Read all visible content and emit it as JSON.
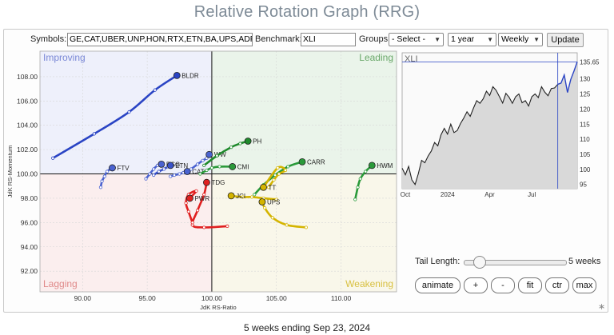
{
  "title": "Relative Rotation Graph (RRG)",
  "controls": {
    "symbols_label": "Symbols:",
    "symbols_value": "GE,CAT,UBER,UNP,HON,RTX,ETN,BA,UPS,ADP,L",
    "benchmark_label": "Benchmark:",
    "benchmark_value": "XLI",
    "groups_label": "Groups:",
    "groups_value": "- Select -",
    "period_value": "1 year",
    "interval_value": "Weekly",
    "update_label": "Update"
  },
  "chart_data": [
    {
      "type": "scatter",
      "subtype": "relative-rotation-graph",
      "xlabel": "JdK RS-Ratio",
      "ylabel": "JdK RS-Momentum",
      "xlim": [
        86.7,
        114.3
      ],
      "ylim": [
        90.3,
        110.1
      ],
      "x_ticks": [
        "90.00",
        "95.00",
        "100.00",
        "105.00",
        "110.00"
      ],
      "y_ticks": [
        "92.00",
        "94.00",
        "96.00",
        "98.00",
        "100.00",
        "102.00",
        "104.00",
        "106.00",
        "108.00"
      ],
      "quadrants": {
        "top_left": "Improving",
        "top_right": "Leading",
        "bottom_left": "Lagging",
        "bottom_right": "Weakening"
      },
      "quadrant_colors": {
        "improving": "#eef0fb",
        "leading": "#eaf4ea",
        "lagging": "#fbeeee",
        "weakening": "#f9f7ea"
      },
      "series": [
        {
          "name": "BLDR",
          "color": "#2a44c4",
          "points": [
            [
              87.7,
              101.3
            ],
            [
              90.9,
              103.3
            ],
            [
              93.6,
              105.1
            ],
            [
              95.6,
              106.9
            ],
            [
              97.3,
              108.1
            ]
          ]
        },
        {
          "name": "FTV",
          "color": "#4a62d0",
          "points": [
            [
              91.4,
              98.9
            ],
            [
              91.5,
              99.4
            ],
            [
              91.7,
              99.8
            ],
            [
              91.9,
              100.2
            ],
            [
              92.3,
              100.5
            ]
          ]
        },
        {
          "name": "RSG",
          "color": "#4a62d0",
          "points": [
            [
              94.9,
              99.6
            ],
            [
              95.2,
              100.0
            ],
            [
              95.5,
              100.4
            ],
            [
              95.8,
              100.7
            ],
            [
              96.1,
              100.8
            ]
          ]
        },
        {
          "name": "ETN",
          "color": "#3a52c8",
          "points": [
            [
              95.5,
              99.9
            ],
            [
              95.9,
              100.2
            ],
            [
              96.3,
              100.4
            ],
            [
              96.6,
              100.6
            ],
            [
              96.8,
              100.7
            ]
          ]
        },
        {
          "name": "CAT",
          "color": "#4a62d0",
          "points": [
            [
              96.8,
              99.8
            ],
            [
              97.1,
              99.9
            ],
            [
              97.5,
              100.0
            ],
            [
              97.8,
              100.1
            ],
            [
              98.1,
              100.2
            ]
          ]
        },
        {
          "name": "WW",
          "color": "#4a62d0",
          "points": [
            [
              98.4,
              100.4
            ],
            [
              98.9,
              100.8
            ],
            [
              99.3,
              101.1
            ],
            [
              99.6,
              101.3
            ],
            [
              99.8,
              101.6
            ]
          ]
        },
        {
          "name": "PH",
          "color": "#1f8a2c",
          "points": [
            [
              99.4,
              100.7
            ],
            [
              100.4,
              101.5
            ],
            [
              101.5,
              102.2
            ],
            [
              102.2,
              102.5
            ],
            [
              102.8,
              102.7
            ]
          ]
        },
        {
          "name": "CMI",
          "color": "#2a9a3a",
          "points": [
            [
              99.1,
              100.0
            ],
            [
              99.6,
              100.3
            ],
            [
              100.0,
              100.5
            ],
            [
              100.6,
              100.6
            ],
            [
              101.6,
              100.6
            ]
          ]
        },
        {
          "name": "CARR",
          "color": "#2a9a3a",
          "points": [
            [
              103.3,
              98.3
            ],
            [
              104.0,
              99.1
            ],
            [
              104.9,
              99.9
            ],
            [
              105.9,
              100.6
            ],
            [
              107.0,
              101.0
            ]
          ]
        },
        {
          "name": "HWM",
          "color": "#2a9a3a",
          "points": [
            [
              111.1,
              97.9
            ],
            [
              111.3,
              98.9
            ],
            [
              111.5,
              99.6
            ],
            [
              111.9,
              100.2
            ],
            [
              112.4,
              100.7
            ]
          ]
        },
        {
          "name": "TT",
          "color": "#d4b400",
          "points": [
            [
              104.4,
              98.9
            ],
            [
              104.8,
              99.5
            ],
            [
              105.2,
              100.0
            ],
            [
              105.7,
              100.3
            ],
            [
              105.1,
              100.5
            ],
            [
              104.0,
              98.9
            ]
          ]
        },
        {
          "name": "JCI",
          "color": "#d4b400",
          "points": [
            [
              105.0,
              97.9
            ],
            [
              104.0,
              98.0
            ],
            [
              103.1,
              98.1
            ],
            [
              102.4,
              98.1
            ],
            [
              101.5,
              98.2
            ]
          ]
        },
        {
          "name": "UPS",
          "color": "#d4b400",
          "points": [
            [
              107.3,
              95.6
            ],
            [
              105.8,
              95.8
            ],
            [
              104.7,
              96.4
            ],
            [
              104.1,
              97.2
            ],
            [
              103.9,
              97.7
            ]
          ]
        },
        {
          "name": "TDG",
          "color": "#e02020",
          "points": [
            [
              101.2,
              95.7
            ],
            [
              99.4,
              95.6
            ],
            [
              98.5,
              95.8
            ],
            [
              98.9,
              97.0
            ],
            [
              99.4,
              98.3
            ],
            [
              99.6,
              99.3
            ]
          ]
        },
        {
          "name": "PWR",
          "color": "#e02020",
          "points": [
            [
              98.5,
              96.0
            ],
            [
              98.2,
              96.9
            ],
            [
              98.0,
              97.6
            ],
            [
              98.2,
              98.3
            ],
            [
              98.8,
              98.6
            ],
            [
              98.3,
              98.0
            ]
          ]
        }
      ]
    },
    {
      "type": "line",
      "title": "XLI",
      "xlabel": "",
      "ylabel": "",
      "x_ticks": [
        "Oct",
        "2024",
        "Apr",
        "Jul"
      ],
      "y_ticks": [
        "95",
        "100",
        "105",
        "110",
        "115",
        "120",
        "125",
        "130",
        "135.65"
      ],
      "ylim": [
        93.6,
        137.6
      ],
      "last_value": 135.65,
      "line_color": "#222222",
      "highlight_color": "#2a44c4",
      "values": [
        100.4,
        98.2,
        101.0,
        96.5,
        95.0,
        98.6,
        103.0,
        102.2,
        104.4,
        106.1,
        108.9,
        107.8,
        111.5,
        113.6,
        111.7,
        115.0,
        112.2,
        112.9,
        115.2,
        117.0,
        119.1,
        117.6,
        120.3,
        122.8,
        121.9,
        123.4,
        125.9,
        124.5,
        127.4,
        126.2,
        124.1,
        122.0,
        125.2,
        123.9,
        121.9,
        124.1,
        125.0,
        122.1,
        122.8,
        121.0,
        124.1,
        125.0,
        123.8,
        127.4,
        125.6,
        124.4,
        126.8,
        127.0,
        128.2,
        128.6,
        131.3,
        125.5,
        129.8,
        132.6,
        135.65
      ]
    }
  ],
  "tail": {
    "label": "Tail Length:",
    "value": "5 weeks"
  },
  "buttons": {
    "animate": "animate",
    "plus": "+",
    "minus": "-",
    "fit": "fit",
    "ctr": "ctr",
    "max": "max"
  },
  "footer": "5 weeks ending Sep 23, 2024"
}
